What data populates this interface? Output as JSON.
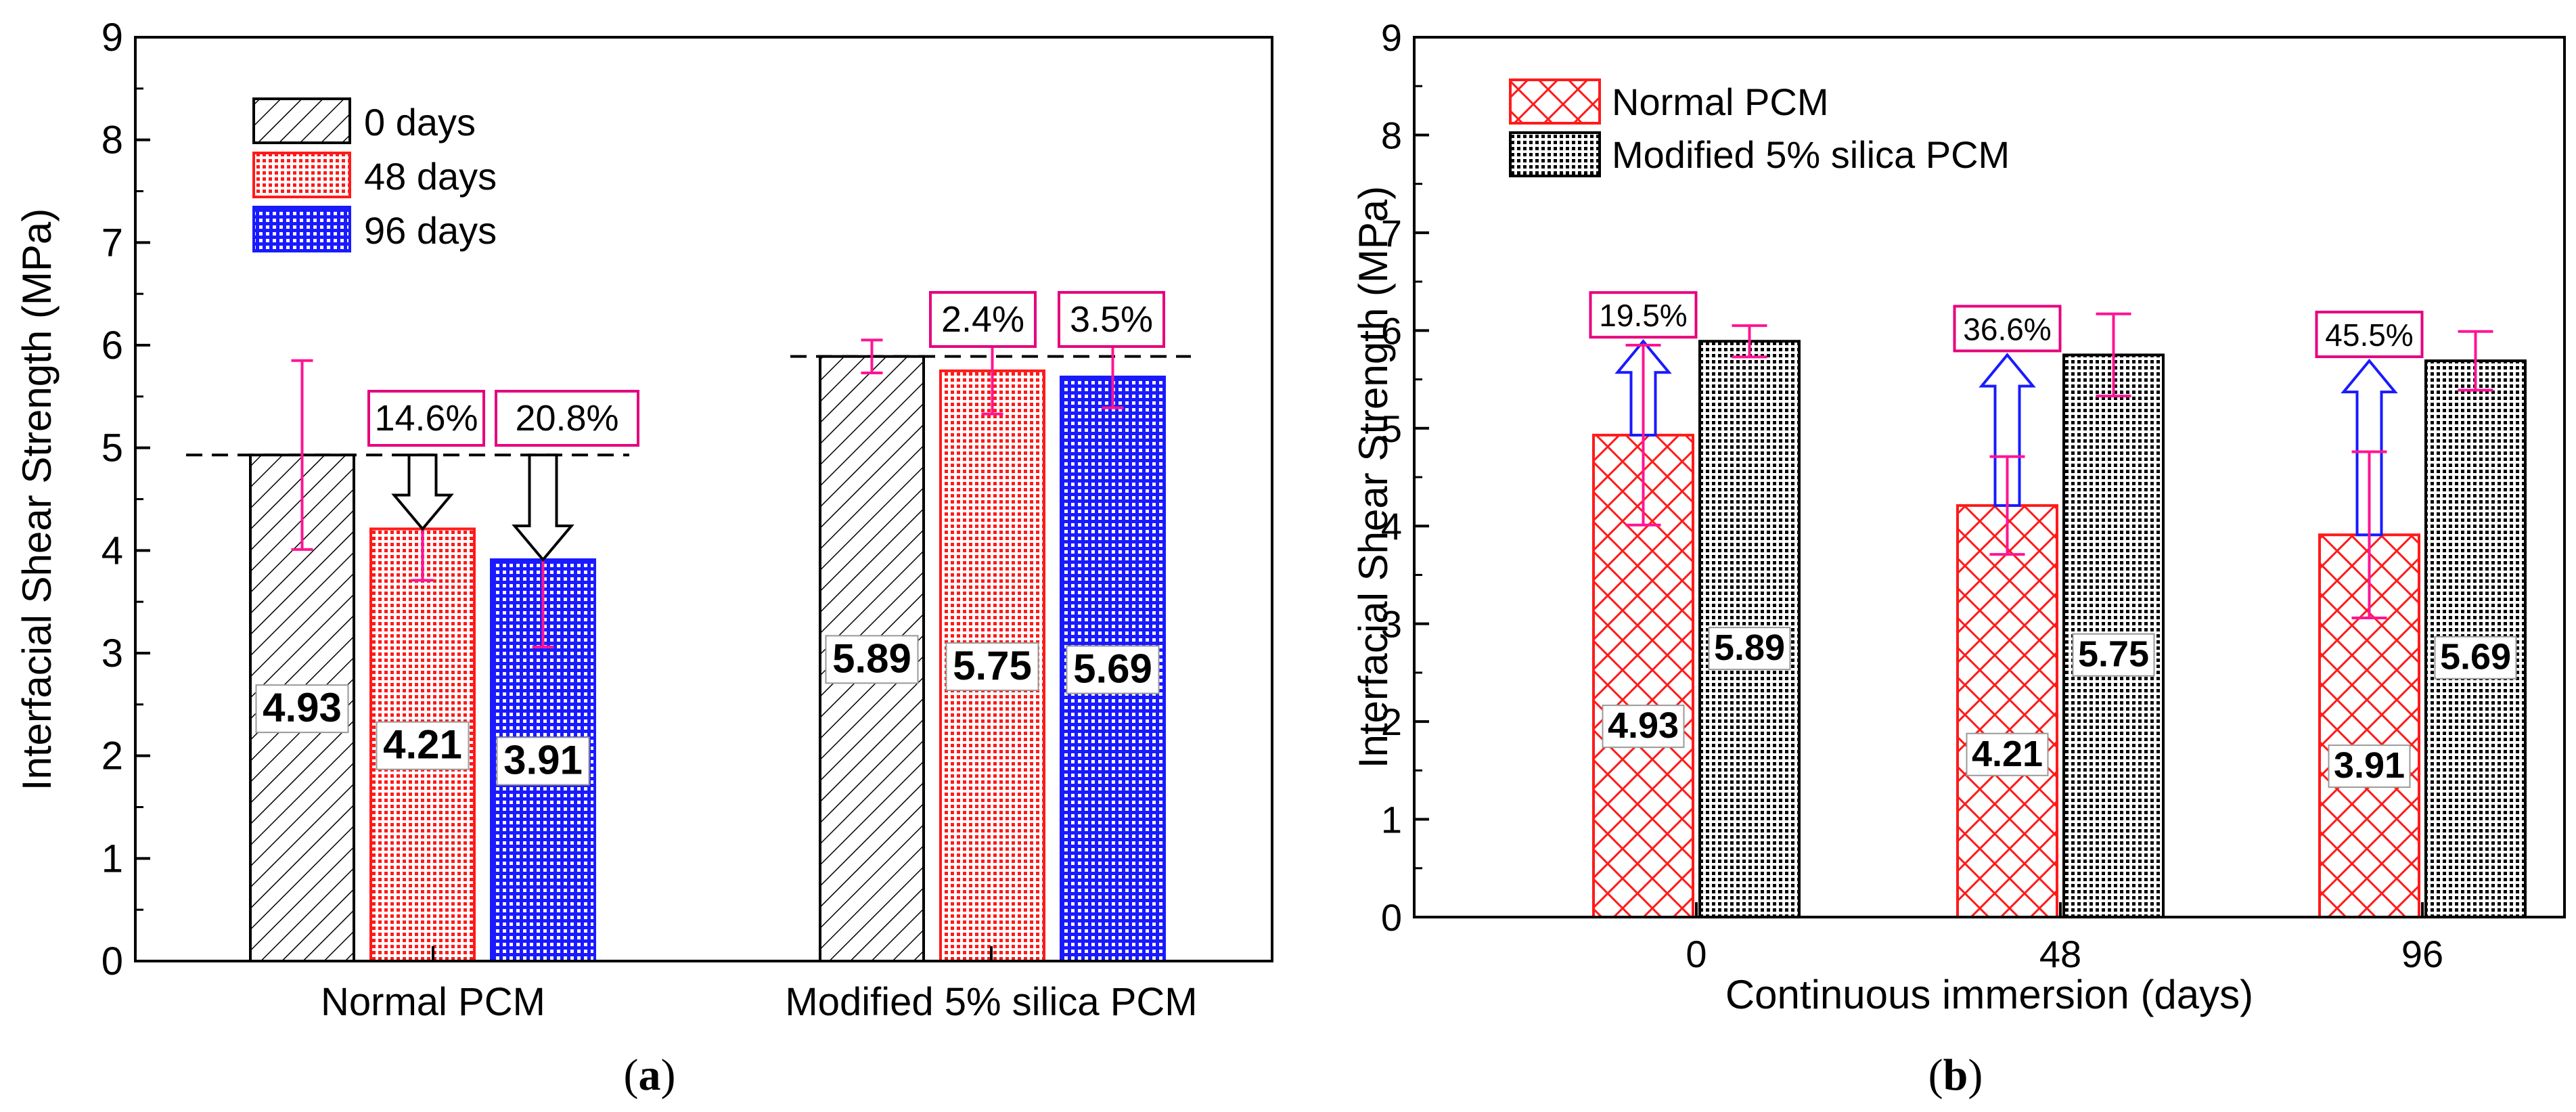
{
  "chart_data": [
    {
      "type": "bar",
      "panel_label": "a",
      "categories": [
        "Normal PCM",
        "Modified 5% silica PCM"
      ],
      "series": [
        {
          "name": "0 days",
          "values": [
            4.93,
            5.89
          ],
          "errors": [
            0.92,
            0.16
          ],
          "value_labels": [
            "4.93",
            "5.89"
          ]
        },
        {
          "name": "48 days",
          "values": [
            4.21,
            5.75
          ],
          "errors": [
            0.5,
            0.42
          ],
          "value_labels": [
            "4.21",
            "5.75"
          ]
        },
        {
          "name": "96 days",
          "values": [
            3.91,
            5.69
          ],
          "errors": [
            0.85,
            0.3
          ],
          "value_labels": [
            "3.91",
            "5.69"
          ]
        }
      ],
      "annotations": [
        {
          "text": "14.6%",
          "category": 0,
          "series": 1
        },
        {
          "text": "20.8%",
          "category": 0,
          "series": 2
        },
        {
          "text": "2.4%",
          "category": 1,
          "series": 1
        },
        {
          "text": "3.5%",
          "category": 1,
          "series": 2
        }
      ],
      "reference_lines": [
        4.93,
        5.89
      ],
      "xlabel": "",
      "ylabel": "Interfacial Shear Strength (MPa)",
      "ylim": [
        0,
        9
      ],
      "yticks": [
        "0",
        "1",
        "2",
        "3",
        "4",
        "5",
        "6",
        "7",
        "8",
        "9"
      ],
      "legend_position": "top-left",
      "grid": false
    },
    {
      "type": "bar",
      "panel_label": "b",
      "categories": [
        "0",
        "48",
        "96"
      ],
      "series": [
        {
          "name": "Normal PCM",
          "values": [
            4.93,
            4.21,
            3.91
          ],
          "errors": [
            0.92,
            0.5,
            0.85
          ],
          "value_labels": [
            "4.93",
            "4.21",
            "3.91"
          ]
        },
        {
          "name": "Modified 5% silica PCM",
          "values": [
            5.89,
            5.75,
            5.69
          ],
          "errors": [
            0.16,
            0.42,
            0.3
          ],
          "value_labels": [
            "5.89",
            "5.75",
            "5.69"
          ]
        }
      ],
      "annotations": [
        {
          "text": "19.5%",
          "category": 0
        },
        {
          "text": "36.6%",
          "category": 1
        },
        {
          "text": "45.5%",
          "category": 2
        }
      ],
      "xlabel": "Continuous immersion (days)",
      "ylabel": "Interfacial Shear Strength (MPa)",
      "ylim": [
        0,
        9
      ],
      "yticks": [
        "0",
        "1",
        "2",
        "3",
        "4",
        "5",
        "6",
        "7",
        "8",
        "9"
      ],
      "legend_position": "top-left",
      "grid": false
    }
  ],
  "colors": {
    "axis": "#000000",
    "red": "#ff1a1a",
    "blue": "#1a1aff",
    "error_bar": "#ff1493",
    "annotation_border": "#e6007e"
  }
}
